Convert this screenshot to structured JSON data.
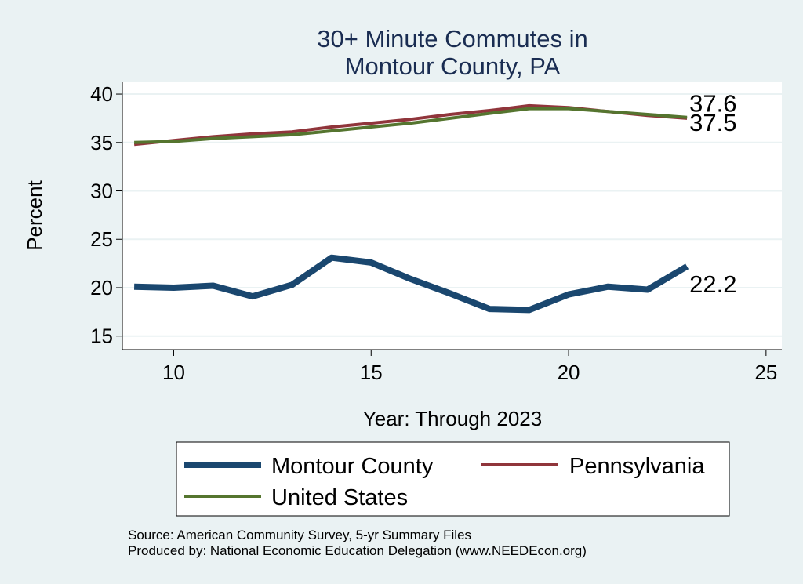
{
  "chart_data": {
    "type": "line",
    "title": [
      "30+ Minute Commutes in",
      "Montour County, PA"
    ],
    "xlabel": "Year: Through 2023",
    "ylabel": "Percent",
    "xlim": [
      8.7,
      25.4
    ],
    "ylim": [
      13.6,
      41.3
    ],
    "xticks": [
      10,
      15,
      20,
      25
    ],
    "yticks": [
      15,
      20,
      25,
      30,
      35,
      40
    ],
    "grid": true,
    "series": [
      {
        "name": "Montour County",
        "color": "#1a476f",
        "width": 8,
        "x": [
          9,
          10,
          11,
          12,
          13,
          14,
          15,
          16,
          17,
          18,
          19,
          20,
          21,
          22,
          23
        ],
        "values": [
          20.1,
          20.0,
          20.2,
          19.1,
          20.3,
          23.1,
          22.6,
          20.9,
          19.4,
          17.8,
          17.7,
          19.3,
          20.1,
          19.8,
          22.2
        ],
        "end_label": "22.2"
      },
      {
        "name": "Pennsylvania",
        "color": "#90353b",
        "width": 4,
        "x": [
          9,
          10,
          11,
          12,
          13,
          14,
          15,
          16,
          17,
          18,
          19,
          20,
          21,
          22,
          23
        ],
        "values": [
          34.8,
          35.2,
          35.6,
          35.9,
          36.1,
          36.6,
          37.0,
          37.4,
          37.9,
          38.3,
          38.8,
          38.6,
          38.2,
          37.8,
          37.5
        ],
        "end_label": "37.5"
      },
      {
        "name": "United States",
        "color": "#55752f",
        "width": 4,
        "x": [
          9,
          10,
          11,
          12,
          13,
          14,
          15,
          16,
          17,
          18,
          19,
          20,
          21,
          22,
          23
        ],
        "values": [
          35.0,
          35.1,
          35.4,
          35.6,
          35.8,
          36.2,
          36.6,
          37.0,
          37.5,
          38.0,
          38.5,
          38.5,
          38.2,
          37.9,
          37.6
        ],
        "end_label": "37.6"
      }
    ],
    "legend": {
      "position": "bottom",
      "entries": [
        "Montour County",
        "Pennsylvania",
        "United States"
      ]
    }
  },
  "source": {
    "line1": "Source: American Community Survey, 5-yr Summary Files",
    "line2": "Produced by: National Economic Education Delegation (www.NEEDEcon.org)"
  }
}
